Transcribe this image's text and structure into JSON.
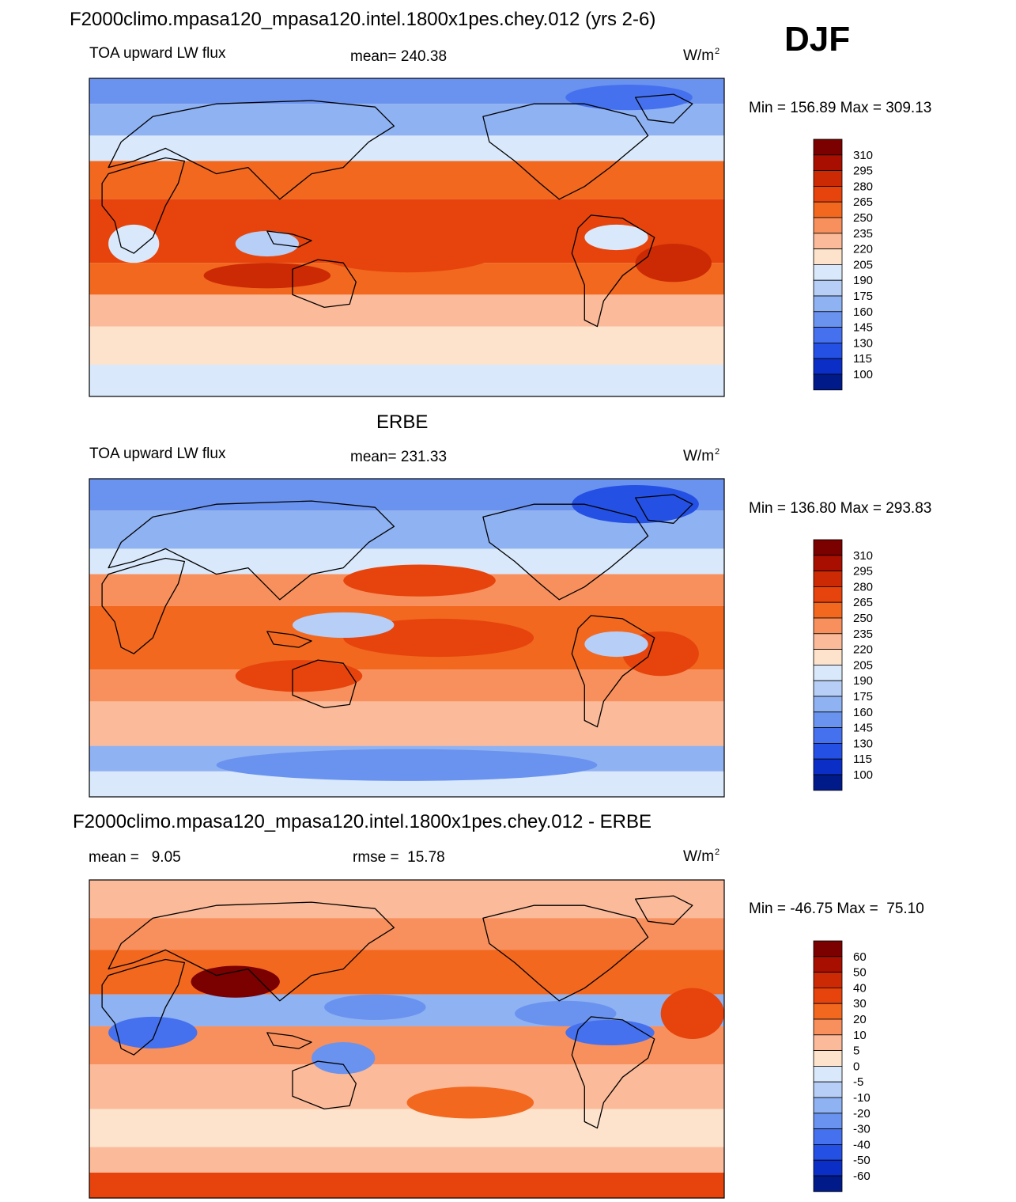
{
  "season": "DJF",
  "chart_data": [
    {
      "type": "contour-map",
      "title": "F2000climo.mpasa120_mpasa120.intel.1800x1pes.chey.012 (yrs 2-6)",
      "variable": "TOA upward LW flux",
      "mean_label": "mean= 240.38",
      "units": "W/m",
      "units_exp": "2",
      "minmax": "Min = 156.89 Max = 309.13",
      "min": 156.89,
      "max": 309.13,
      "levels": [
        "310",
        "295",
        "280",
        "265",
        "250",
        "235",
        "220",
        "205",
        "190",
        "175",
        "160",
        "145",
        "130",
        "115",
        "100"
      ],
      "palette": [
        "#7b0000",
        "#a80f00",
        "#cc2a04",
        "#e6440c",
        "#f2681f",
        "#f8905d",
        "#fbba99",
        "#fde2cc",
        "#d9e9fb",
        "#b7cef6",
        "#8fb2f2",
        "#6a92ef",
        "#4571ee",
        "#2450e4",
        "#0b2fc6",
        "#001a8a"
      ]
    },
    {
      "type": "contour-map",
      "title": "ERBE",
      "variable": "TOA upward LW flux",
      "mean_label": "mean= 231.33",
      "units": "W/m",
      "units_exp": "2",
      "minmax": "Min = 136.80 Max = 293.83",
      "min": 136.8,
      "max": 293.83,
      "levels": [
        "310",
        "295",
        "280",
        "265",
        "250",
        "235",
        "220",
        "205",
        "190",
        "175",
        "160",
        "145",
        "130",
        "115",
        "100"
      ],
      "palette": [
        "#7b0000",
        "#a80f00",
        "#cc2a04",
        "#e6440c",
        "#f2681f",
        "#f8905d",
        "#fbba99",
        "#fde2cc",
        "#d9e9fb",
        "#b7cef6",
        "#8fb2f2",
        "#6a92ef",
        "#4571ee",
        "#2450e4",
        "#0b2fc6",
        "#001a8a"
      ]
    },
    {
      "type": "contour-map",
      "title": "F2000climo.mpasa120_mpasa120.intel.1800x1pes.chey.012 - ERBE",
      "mean_label": "mean =   9.05",
      "rmse_label": "rmse =  15.78",
      "units": "W/m",
      "units_exp": "2",
      "minmax": "Min = -46.75 Max =  75.10",
      "min": -46.75,
      "max": 75.1,
      "levels": [
        "60",
        "50",
        "40",
        "30",
        "20",
        "10",
        "5",
        "0",
        "-5",
        "-10",
        "-20",
        "-30",
        "-40",
        "-50",
        "-60"
      ],
      "palette": [
        "#7b0000",
        "#a80f00",
        "#cc2a04",
        "#e6440c",
        "#f2681f",
        "#f8905d",
        "#fbba99",
        "#fde2cc",
        "#d9e9fb",
        "#b7cef6",
        "#8fb2f2",
        "#6a92ef",
        "#4571ee",
        "#2450e4",
        "#0b2fc6",
        "#001a8a"
      ]
    }
  ]
}
